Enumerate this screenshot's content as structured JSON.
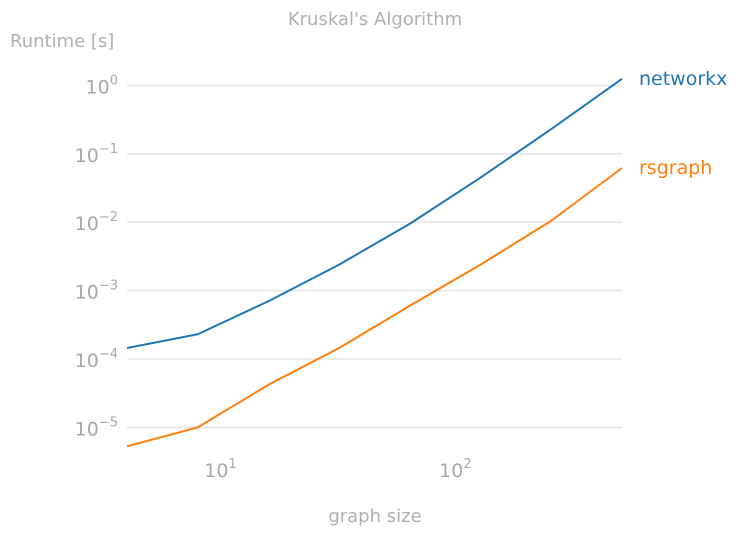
{
  "chart_data": {
    "type": "line",
    "title": "Kruskal's Algorithm",
    "xlabel": "graph size",
    "ylabel": "Runtime [s]",
    "x_scale": "log",
    "y_scale": "log",
    "xlim": [
      4,
      512
    ],
    "ylim": [
      5e-06,
      1.2
    ],
    "x_ticks": [
      {
        "value": 10,
        "base": "10",
        "exp": "1"
      },
      {
        "value": 100,
        "base": "10",
        "exp": "2"
      }
    ],
    "y_ticks": [
      {
        "value": 1,
        "base": "10",
        "exp": "0"
      },
      {
        "value": 0.1,
        "base": "10",
        "exp": "−1"
      },
      {
        "value": 0.01,
        "base": "10",
        "exp": "−2"
      },
      {
        "value": 0.001,
        "base": "10",
        "exp": "−3"
      },
      {
        "value": 0.0001,
        "base": "10",
        "exp": "−4"
      },
      {
        "value": 1e-05,
        "base": "10",
        "exp": "−5"
      }
    ],
    "grid": "horizontal",
    "legend": "inline labels at right end of lines",
    "series": [
      {
        "name": "networkx",
        "color": "#1f77b4",
        "x": [
          4,
          8,
          16,
          32,
          64,
          128,
          256,
          512
        ],
        "y": [
          0.000145,
          0.00023,
          0.0007,
          0.0024,
          0.0095,
          0.045,
          0.23,
          1.25
        ]
      },
      {
        "name": "rsgraph",
        "color": "#ff7f0e",
        "x": [
          4,
          8,
          16,
          32,
          64,
          128,
          256,
          512
        ],
        "y": [
          5.3e-06,
          1e-05,
          4.2e-05,
          0.000145,
          0.0006,
          0.0024,
          0.0105,
          0.062
        ]
      }
    ]
  }
}
